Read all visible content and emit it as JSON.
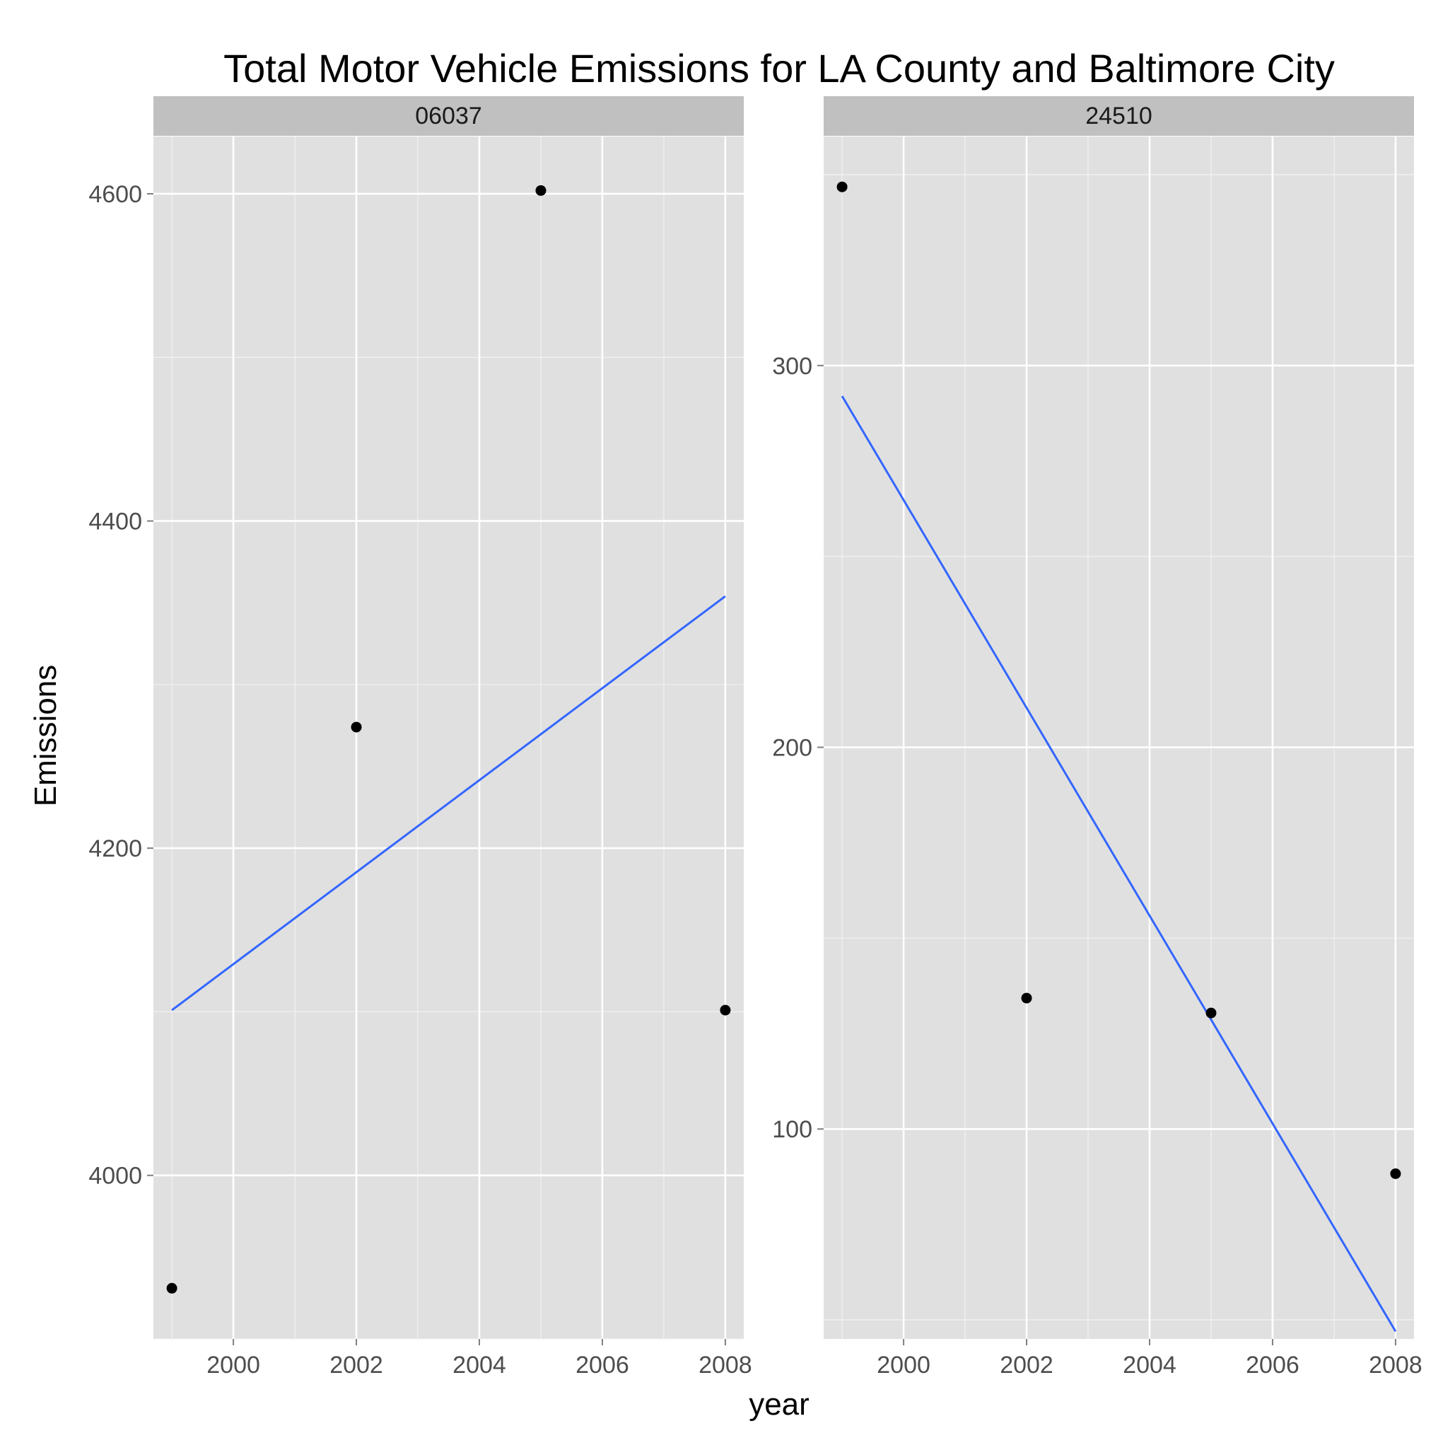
{
  "chart_data": {
    "type": "scatter",
    "title": "Total Motor Vehicle Emissions for LA County and Baltimore City",
    "xlabel": "year",
    "ylabel": "Emissions",
    "grid": true,
    "point_color": "#000000",
    "trend_color": "#3366ff",
    "panel_background": "#e0e0e0",
    "strip_background": "#c0c0c0",
    "panels": [
      {
        "strip": "06037",
        "xlim": [
          1998.7,
          2008.3
        ],
        "ylim": [
          3900,
          4635
        ],
        "x_ticks": [
          2000,
          2002,
          2004,
          2006,
          2008
        ],
        "x_tick_labels": [
          "2000",
          "2002",
          "2004",
          "2006",
          "2008"
        ],
        "y_ticks": [
          4000,
          4200,
          4400,
          4600
        ],
        "y_tick_labels": [
          "4000",
          "4200",
          "4400",
          "4600"
        ],
        "points": [
          {
            "x": 1999,
            "y": 3931
          },
          {
            "x": 2002,
            "y": 4274
          },
          {
            "x": 2005,
            "y": 4602
          },
          {
            "x": 2008,
            "y": 4101
          }
        ],
        "trend": {
          "x": [
            1999,
            2008
          ],
          "y": [
            4101,
            4354
          ]
        }
      },
      {
        "strip": "24510",
        "xlim": [
          1998.7,
          2008.3
        ],
        "ylim": [
          45,
          360
        ],
        "x_ticks": [
          2000,
          2002,
          2004,
          2006,
          2008
        ],
        "x_tick_labels": [
          "2000",
          "2002",
          "2004",
          "2006",
          "2008"
        ],
        "y_ticks": [
          100,
          200,
          300
        ],
        "y_tick_labels": [
          "100",
          "200",
          "300"
        ],
        "points": [
          {
            "x": 1999,
            "y": 346.8
          },
          {
            "x": 2002,
            "y": 134.3
          },
          {
            "x": 2005,
            "y": 130.4
          },
          {
            "x": 2008,
            "y": 88.3
          }
        ],
        "trend": {
          "x": [
            1999,
            2008
          ],
          "y": [
            292,
            47
          ]
        }
      }
    ]
  }
}
